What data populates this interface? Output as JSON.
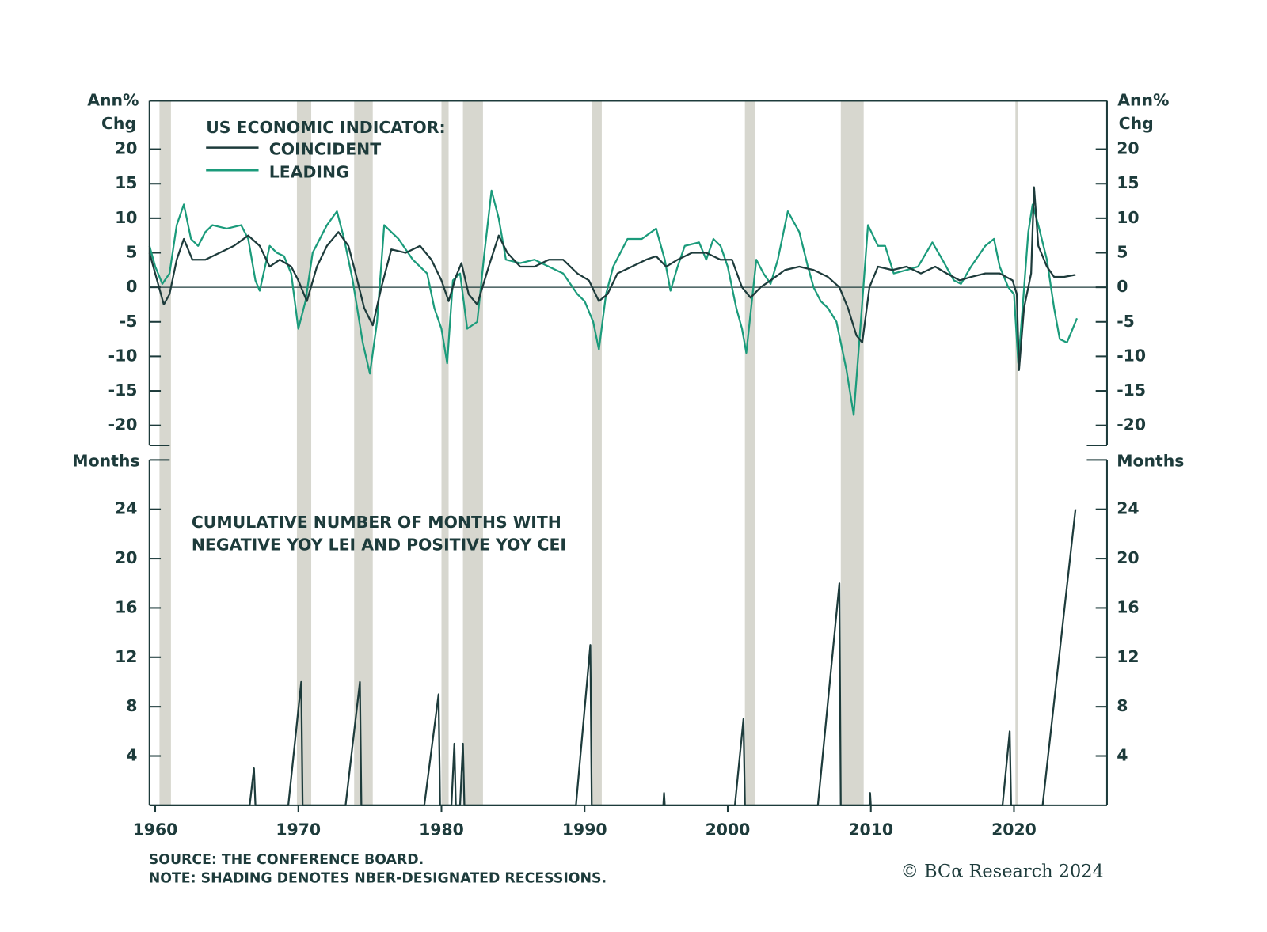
{
  "chart_data": [
    {
      "type": "line",
      "y_label": [
        "Ann%",
        "Chg"
      ],
      "legend_title": "US ECONOMIC INDICATOR:",
      "xlim": [
        1959.6,
        2026.5
      ],
      "ylim": [
        -22.9,
        27
      ],
      "yticks": [
        20,
        15,
        10,
        5,
        0,
        -5,
        -10,
        -15,
        -20
      ],
      "recessions": [
        [
          1960.3,
          1961.1
        ],
        [
          1969.9,
          1970.9
        ],
        [
          1973.9,
          1975.2
        ],
        [
          1980.0,
          1980.5
        ],
        [
          1981.5,
          1982.9
        ],
        [
          1990.5,
          1991.2
        ],
        [
          2001.2,
          2001.9
        ],
        [
          2007.9,
          2009.5
        ],
        [
          2020.1,
          2020.3
        ]
      ],
      "recession_color": "#d7d7cf",
      "series": [
        {
          "name": "COINCIDENT",
          "color": "#1d3b3b",
          "x": [
            1959.6,
            1960.0,
            1960.6,
            1961.0,
            1961.5,
            1962.0,
            1962.6,
            1963.5,
            1964.5,
            1965.5,
            1966.5,
            1967.3,
            1968.0,
            1968.7,
            1969.5,
            1970.0,
            1970.6,
            1971.3,
            1972.0,
            1972.8,
            1973.5,
            1974.0,
            1974.6,
            1975.2,
            1975.8,
            1976.5,
            1977.5,
            1978.5,
            1979.3,
            1980.0,
            1980.5,
            1981.0,
            1981.4,
            1981.9,
            1982.5,
            1983.3,
            1984.0,
            1984.6,
            1985.5,
            1986.5,
            1987.5,
            1988.5,
            1989.5,
            1990.3,
            1991.0,
            1991.6,
            1992.3,
            1993.3,
            1994.3,
            1995.0,
            1995.7,
            1996.5,
            1997.5,
            1998.5,
            1999.5,
            2000.3,
            2001.0,
            2001.6,
            2002.3,
            2003.0,
            2004.0,
            2005.0,
            2006.0,
            2007.0,
            2007.8,
            2008.4,
            2009.0,
            2009.4,
            2009.9,
            2010.5,
            2011.5,
            2012.5,
            2013.5,
            2014.5,
            2015.3,
            2016.2,
            2017.0,
            2018.0,
            2019.0,
            2019.9,
            2020.2,
            2020.35,
            2020.7,
            2021.2,
            2021.4,
            2021.7,
            2022.3,
            2022.8,
            2023.5,
            2024.3
          ],
          "values": [
            5,
            2,
            -2.5,
            -1,
            4,
            7,
            4,
            4,
            5,
            6,
            7.5,
            6,
            3,
            4,
            3,
            1,
            -2,
            3,
            6,
            8,
            6,
            2,
            -3,
            -5.5,
            0,
            5.5,
            5,
            6,
            4,
            1,
            -2,
            1.5,
            3.5,
            -1,
            -2.5,
            3,
            7.5,
            5,
            3,
            3,
            4,
            4,
            2,
            1,
            -2,
            -1,
            2,
            3,
            4,
            4.5,
            3,
            4,
            5,
            5,
            4,
            4,
            0,
            -1.5,
            0,
            1,
            2.5,
            3,
            2.5,
            1.5,
            0,
            -3,
            -7,
            -8,
            0,
            3,
            2.5,
            3,
            2,
            3,
            2,
            1,
            1.5,
            2,
            2,
            1,
            -1,
            -12,
            -3,
            2,
            14.5,
            6,
            3,
            1.5,
            1.5,
            1.8
          ]
        },
        {
          "name": "LEADING",
          "color": "#1b9b7b",
          "x": [
            1959.6,
            1960.0,
            1960.5,
            1961.0,
            1961.5,
            1962.0,
            1962.5,
            1963.0,
            1963.5,
            1964.0,
            1965.0,
            1966.0,
            1966.5,
            1967.0,
            1967.3,
            1968.0,
            1968.5,
            1969.0,
            1969.5,
            1970.0,
            1970.5,
            1971.0,
            1972.0,
            1972.7,
            1973.2,
            1973.8,
            1974.5,
            1975.0,
            1975.5,
            1976.0,
            1976.5,
            1977.0,
            1978.0,
            1979.0,
            1979.5,
            1980.0,
            1980.4,
            1980.8,
            1981.3,
            1981.8,
            1982.5,
            1983.0,
            1983.5,
            1984.0,
            1984.5,
            1985.5,
            1986.5,
            1987.5,
            1988.5,
            1989.5,
            1990.0,
            1990.6,
            1991.0,
            1991.5,
            1992.0,
            1993.0,
            1994.0,
            1995.0,
            1995.6,
            1996.0,
            1996.5,
            1997.0,
            1998.0,
            1998.5,
            1999.0,
            1999.5,
            2000.0,
            2000.6,
            2001.0,
            2001.3,
            2002.0,
            2002.5,
            2003.0,
            2003.5,
            2004.2,
            2005.0,
            2005.6,
            2006.0,
            2006.5,
            2007.0,
            2007.6,
            2008.3,
            2008.8,
            2009.3,
            2009.8,
            2010.5,
            2011.0,
            2011.6,
            2012.5,
            2013.3,
            2014.3,
            2015.0,
            2015.8,
            2016.3,
            2017.0,
            2018.0,
            2018.6,
            2019.0,
            2019.6,
            2020.0,
            2020.3,
            2020.6,
            2021.0,
            2021.3,
            2021.7,
            2022.3,
            2022.8,
            2023.2,
            2023.7,
            2024.1,
            2024.4
          ],
          "values": [
            6,
            3,
            0.5,
            2,
            9,
            12,
            7,
            6,
            8,
            9,
            8.5,
            9,
            7,
            1,
            -0.5,
            6,
            5,
            4.5,
            2,
            -6,
            -2,
            5,
            9,
            11,
            7,
            1,
            -8,
            -12.5,
            -5,
            9,
            8,
            7,
            4,
            2,
            -3,
            -6,
            -11,
            1,
            2,
            -6,
            -5,
            5,
            14,
            10,
            4,
            3.5,
            4,
            3,
            2,
            -1,
            -2,
            -5,
            -9,
            -1,
            3,
            7,
            7,
            8.5,
            4,
            -0.5,
            3,
            6,
            6.5,
            4,
            7,
            6,
            3,
            -3,
            -6,
            -9.5,
            4,
            2,
            0.5,
            4,
            11,
            8,
            3,
            0,
            -2,
            -3,
            -5,
            -12,
            -18.5,
            -5,
            9,
            6,
            6,
            2,
            2.5,
            3,
            6.5,
            4,
            1,
            0.5,
            3,
            6,
            7,
            3,
            0,
            -1,
            -11,
            -3,
            8,
            12,
            9,
            4,
            -3,
            -7.5,
            -8,
            -6,
            -4.5
          ]
        }
      ]
    },
    {
      "type": "line",
      "y_label": "Months",
      "annotation": [
        "CUMULATIVE NUMBER OF MONTHS WITH",
        "NEGATIVE YOY LEI AND POSITIVE YOY CEI"
      ],
      "xlim": [
        1959.6,
        2026.5
      ],
      "xticks": [
        1960,
        1970,
        1980,
        1990,
        2000,
        2010,
        2020
      ],
      "ylim": [
        0,
        28
      ],
      "yticks": [
        24,
        20,
        16,
        12,
        8,
        4
      ],
      "series": [
        {
          "color": "#1d3b3b",
          "x": [
            1959.6,
            1966.6,
            1966.9,
            1967.0,
            1969.3,
            1970.2,
            1970.3,
            1973.3,
            1974.3,
            1974.4,
            1978.8,
            1979.8,
            1979.9,
            1980.7,
            1980.9,
            1981.0,
            1981.3,
            1981.5,
            1981.6,
            1989.4,
            1990.4,
            1990.5,
            1995.5,
            1995.55,
            1995.6,
            2000.5,
            2001.1,
            2001.2,
            2006.3,
            2007.8,
            2007.9,
            2009.9,
            2009.95,
            2010.0,
            2019.2,
            2019.7,
            2019.8,
            2022.0,
            2024.3
          ],
          "values": [
            0,
            0,
            3,
            0,
            0,
            10,
            0,
            0,
            10,
            0,
            0,
            9,
            0,
            0,
            5,
            0,
            0,
            5,
            0,
            0,
            13,
            0,
            0,
            1,
            0,
            0,
            7,
            0,
            0,
            18,
            0,
            0,
            1,
            0,
            0,
            6,
            0,
            0,
            24
          ]
        }
      ]
    }
  ],
  "footer": {
    "source": "SOURCE: THE CONFERENCE BOARD.",
    "note": "NOTE: SHADING DENOTES NBER-DESIGNATED RECESSIONS.",
    "credit": "© BCα Research 2024"
  }
}
